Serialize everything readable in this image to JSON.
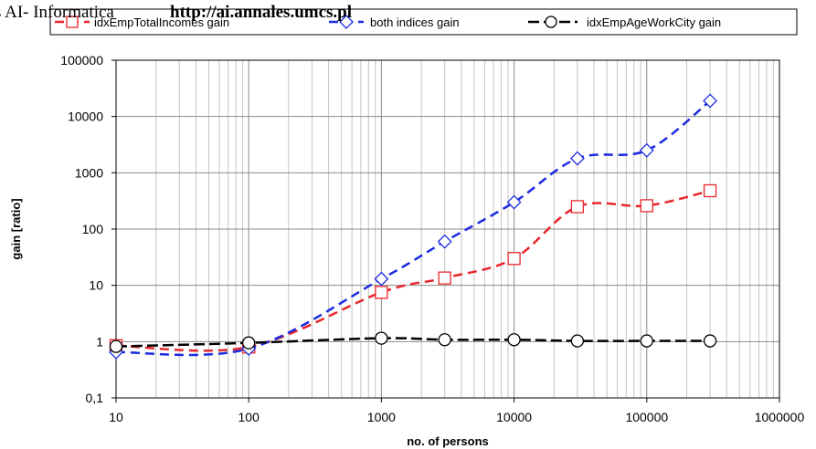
{
  "watermark": {
    "prefix": "s AI- Informatica",
    "url": "http://ai.annales.umcs.pl"
  },
  "chart_data": {
    "type": "line",
    "xlabel": "no. of persons",
    "ylabel": "gain [ratio]",
    "x_scale": "log",
    "y_scale": "log",
    "xlim": [
      10,
      1000000
    ],
    "ylim": [
      0.1,
      100000
    ],
    "x_ticks": [
      "10",
      "100",
      "1000",
      "10000",
      "100000",
      "1000000"
    ],
    "y_ticks": [
      "0,1",
      "1",
      "10",
      "100",
      "1000",
      "10000",
      "100000"
    ],
    "grid": true,
    "legend_position": "top",
    "series": [
      {
        "name": "idxEmpTotalIncomes gain",
        "color": "#e8262b",
        "marker": "square",
        "x": [
          10,
          100,
          1000,
          3000,
          10000,
          30000,
          100000,
          300000
        ],
        "y": [
          0.85,
          0.8,
          7.5,
          13.5,
          30,
          250,
          260,
          480
        ]
      },
      {
        "name": "both indices gain",
        "color": "#1c2ae0",
        "marker": "diamond",
        "x": [
          10,
          100,
          1000,
          3000,
          10000,
          30000,
          100000,
          300000
        ],
        "y": [
          0.65,
          0.75,
          13,
          60,
          300,
          1800,
          2500,
          19000
        ]
      },
      {
        "name": "idxEmpAgeWorkCity gain",
        "color": "#000000",
        "marker": "circle",
        "x": [
          10,
          100,
          1000,
          3000,
          10000,
          30000,
          100000,
          300000
        ],
        "y": [
          0.82,
          0.95,
          1.15,
          1.08,
          1.08,
          1.03,
          1.03,
          1.03
        ]
      }
    ]
  }
}
